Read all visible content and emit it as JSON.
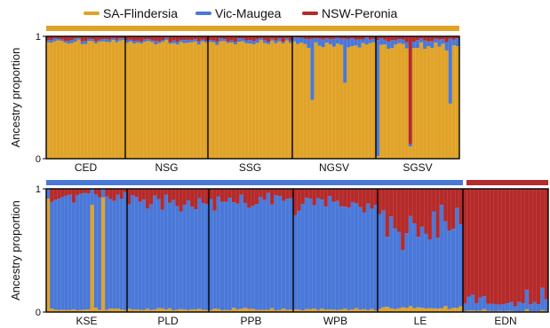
{
  "legend": [
    {
      "label": "SA-Flindersia",
      "color": "#e0a328"
    },
    {
      "label": "Vic-Maugea",
      "color": "#4a78d8"
    },
    {
      "label": "NSW-Peronia",
      "color": "#b52a2a"
    }
  ],
  "chart_data": [
    {
      "type": "bar",
      "subtype": "stacked-ancestry",
      "ylabel": "Ancestry proportion",
      "ylim": [
        0,
        1
      ],
      "yticks": [
        "0",
        "1"
      ],
      "components": [
        "SA-Flindersia",
        "Vic-Maugea",
        "NSW-Peronia"
      ],
      "cluster_bar": [
        {
          "color": "#e0a328",
          "span_populations": [
            "CED",
            "NSG",
            "SSG",
            "NGSV",
            "SGSV"
          ]
        }
      ],
      "populations": [
        {
          "name": "CED",
          "n": 23,
          "mean": [
            0.95,
            0.02,
            0.03
          ]
        },
        {
          "name": "NSG",
          "n": 23,
          "mean": [
            0.95,
            0.02,
            0.03
          ]
        },
        {
          "name": "SSG",
          "n": 23,
          "mean": [
            0.95,
            0.02,
            0.03
          ]
        },
        {
          "name": "NGSV",
          "n": 23,
          "mean": [
            0.93,
            0.05,
            0.02
          ],
          "outliers": [
            {
              "index": 5,
              "values": [
                0.48,
                0.5,
                0.02
              ]
            },
            {
              "index": 14,
              "values": [
                0.62,
                0.36,
                0.02
              ]
            }
          ]
        },
        {
          "name": "SGSV",
          "n": 23,
          "mean": [
            0.92,
            0.05,
            0.03
          ],
          "outliers": [
            {
              "index": 0,
              "values": [
                0.02,
                0.95,
                0.03
              ]
            },
            {
              "index": 9,
              "values": [
                0.1,
                0.02,
                0.88
              ]
            },
            {
              "index": 20,
              "values": [
                0.45,
                0.53,
                0.02
              ]
            }
          ]
        }
      ]
    },
    {
      "type": "bar",
      "subtype": "stacked-ancestry",
      "ylabel": "Ancestry proportion",
      "ylim": [
        0,
        1
      ],
      "yticks": [
        "0",
        "1"
      ],
      "components": [
        "SA-Flindersia",
        "Vic-Maugea",
        "NSW-Peronia"
      ],
      "cluster_bar": [
        {
          "color": "#4a78d8",
          "span_populations": [
            "KSE",
            "PLD",
            "PPB",
            "WPB",
            "LE"
          ]
        },
        {
          "color": "#b52a2a",
          "span_populations": [
            "EDN"
          ]
        }
      ],
      "populations": [
        {
          "name": "KSE",
          "n": 22,
          "mean": [
            0.02,
            0.92,
            0.06
          ],
          "outliers": [
            {
              "index": 0,
              "values": [
                0.92,
                0.08,
                0.0
              ]
            },
            {
              "index": 12,
              "values": [
                0.87,
                0.13,
                0.0
              ]
            },
            {
              "index": 15,
              "values": [
                0.93,
                0.07,
                0.0
              ]
            }
          ]
        },
        {
          "name": "PLD",
          "n": 22,
          "mean": [
            0.02,
            0.88,
            0.1
          ]
        },
        {
          "name": "PPB",
          "n": 22,
          "mean": [
            0.02,
            0.89,
            0.09
          ]
        },
        {
          "name": "WPB",
          "n": 22,
          "mean": [
            0.02,
            0.85,
            0.13
          ]
        },
        {
          "name": "LE",
          "n": 22,
          "mean": [
            0.03,
            0.67,
            0.3
          ]
        },
        {
          "name": "EDN",
          "n": 22,
          "mean": [
            0.01,
            0.08,
            0.91
          ]
        }
      ]
    }
  ]
}
